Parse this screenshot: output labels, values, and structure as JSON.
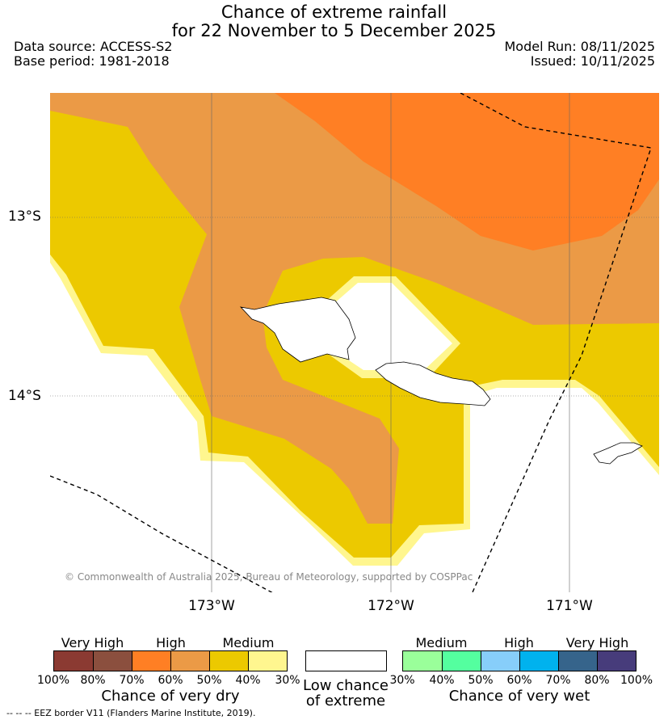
{
  "header": {
    "title_line1": "Chance of extreme rainfall",
    "title_line2": "for 22 November to 5 December 2025",
    "data_source": "Data source: ACCESS-S2",
    "base_period": "Base period: 1981-2018",
    "model_run": "Model Run: 08/11/2025",
    "issued": "Issued: 10/11/2025"
  },
  "map": {
    "lat_labels": [
      "13°S",
      "14°S"
    ],
    "lon_labels": [
      "173°W",
      "172°W",
      "171°W"
    ],
    "copyright": "© Commonwealth of Australia 2025, Bureau of Meteorology, supported by COSPPac",
    "colors": {
      "very_dry_high": "#ff7f24",
      "very_dry_medium_high": "#eb9a46",
      "very_dry_medium": "#ecc900",
      "very_dry_low": "#fff68f",
      "low_chance": "#ffffff"
    }
  },
  "legend": {
    "dry": {
      "headers": [
        "Very High",
        "High",
        "Medium"
      ],
      "ticks": [
        "100%",
        "80%",
        "70%",
        "60%",
        "50%",
        "40%",
        "30%"
      ],
      "caption": "Chance of very dry",
      "colors": [
        "#8b3a32",
        "#8b4f3e",
        "#ff7f24",
        "#eb9a46",
        "#ecc900",
        "#fff68f"
      ]
    },
    "low": {
      "caption_line1": "Low chance",
      "caption_line2": "of extreme",
      "color": "#ffffff"
    },
    "wet": {
      "headers": [
        "Medium",
        "High",
        "Very High"
      ],
      "ticks": [
        "30%",
        "40%",
        "50%",
        "60%",
        "70%",
        "80%",
        "100%"
      ],
      "caption": "Chance of very wet",
      "colors": [
        "#9aff9a",
        "#54ff9f",
        "#87cefa",
        "#00b2ee",
        "#36648b",
        "#473c7b"
      ]
    }
  },
  "footer": "--  --  -- EEZ border V11 (Flanders Marine Institute, 2019)."
}
